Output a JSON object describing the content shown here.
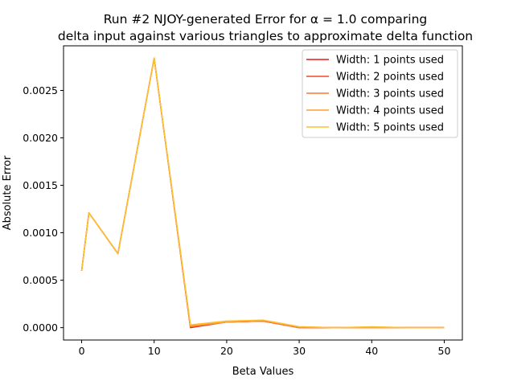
{
  "chart_data": {
    "type": "line",
    "title_line1": "Run #2 NJOY-generated Error for α = 1.0 comparing",
    "title_line2": "delta input against various triangles to approximate delta function",
    "xlabel": "Beta Values",
    "ylabel": "Absolute Error",
    "xlim": [
      -2.5,
      52.5
    ],
    "ylim": [
      -0.00013,
      0.00297
    ],
    "xticks": [
      0,
      10,
      20,
      30,
      40,
      50
    ],
    "xtick_labels": [
      "0",
      "10",
      "20",
      "30",
      "40",
      "50"
    ],
    "yticks": [
      0.0,
      0.0005,
      0.001,
      0.0015,
      0.002,
      0.0025
    ],
    "ytick_labels": [
      "0.0000",
      "0.0005",
      "0.0010",
      "0.0015",
      "0.0020",
      "0.0025"
    ],
    "x": [
      0,
      1,
      5,
      10,
      15,
      20,
      25,
      30,
      35,
      40,
      45,
      50
    ],
    "series": [
      {
        "name": "Width: 1 points used",
        "color": "#e8191a",
        "values": [
          0.0006,
          0.00121,
          0.00078,
          0.00284,
          0.0,
          6e-05,
          7e-05,
          0.0,
          0.0,
          0.0,
          0.0,
          0.0
        ]
      },
      {
        "name": "Width: 2 points used",
        "color": "#f2492a",
        "values": [
          0.0006,
          0.00121,
          0.00078,
          0.00284,
          1e-05,
          6e-05,
          7e-05,
          0.0,
          0.0,
          0.0,
          0.0,
          0.0
        ]
      },
      {
        "name": "Width: 3 points used",
        "color": "#f77a2e",
        "values": [
          0.0006,
          0.00121,
          0.00078,
          0.00284,
          1e-05,
          6e-05,
          7e-05,
          0.0,
          0.0,
          0.0,
          0.0,
          0.0
        ]
      },
      {
        "name": "Width: 4 points used",
        "color": "#fb9d30",
        "values": [
          0.0006,
          0.00121,
          0.00078,
          0.00284,
          2e-05,
          6e-05,
          8e-05,
          1e-05,
          0.0,
          0.0,
          0.0,
          0.0
        ]
      },
      {
        "name": "Width: 5 points used",
        "color": "#fcc132",
        "values": [
          0.0006,
          0.00121,
          0.00078,
          0.00284,
          3e-05,
          7e-05,
          8e-05,
          1e-05,
          0.0,
          1e-05,
          0.0,
          0.0
        ]
      }
    ],
    "legend": "top-right",
    "grid": false
  }
}
